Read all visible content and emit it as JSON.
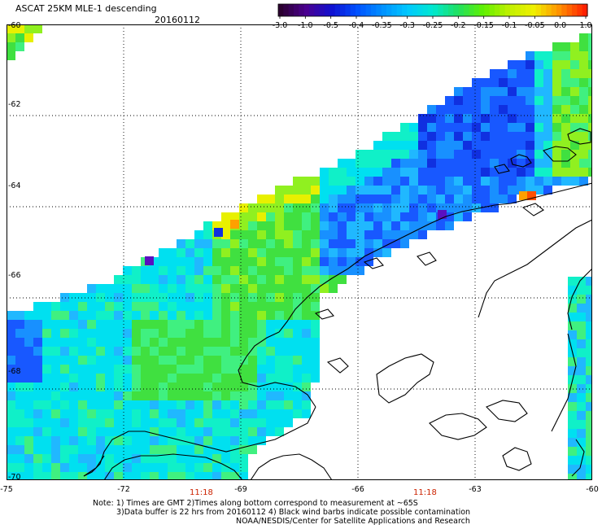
{
  "header": {
    "title": "ASCAT 25KM MLE-1 descending",
    "date": "20160112"
  },
  "colorbar": {
    "labels": [
      "-3.0",
      "-1.0",
      "-0.5",
      "-0.4",
      "-0.35",
      "-0.3",
      "-0.25",
      "-0.2",
      "-0.15",
      "-0.1",
      "-0.05",
      "0.0",
      "1.0"
    ],
    "colors": [
      "#2b0030",
      "#4b0090",
      "#1010d0",
      "#0050ff",
      "#0090ff",
      "#00c8ff",
      "#00e8d0",
      "#20e060",
      "#60f000",
      "#c0f000",
      "#f0f000",
      "#ff9000",
      "#ff2000"
    ]
  },
  "map": {
    "lat_labels": [
      "-60",
      "-62",
      "-64",
      "-66",
      "-68",
      "-70"
    ],
    "lon_labels": [
      "-75",
      "-72",
      "-69",
      "-66",
      "-63",
      "-60"
    ],
    "time_labels": [
      "11:18",
      "11:18"
    ]
  },
  "notes": {
    "line1": "Note: 1) Times are GMT 2)Times along bottom correspond to measurement at ~65S",
    "line2": "3)Data buffer is 22 hrs from 20160112 4) Black wind barbs indicate possible contamination",
    "line3": "NOAA/NESDIS/Center for Satellite Applications and Research"
  }
}
